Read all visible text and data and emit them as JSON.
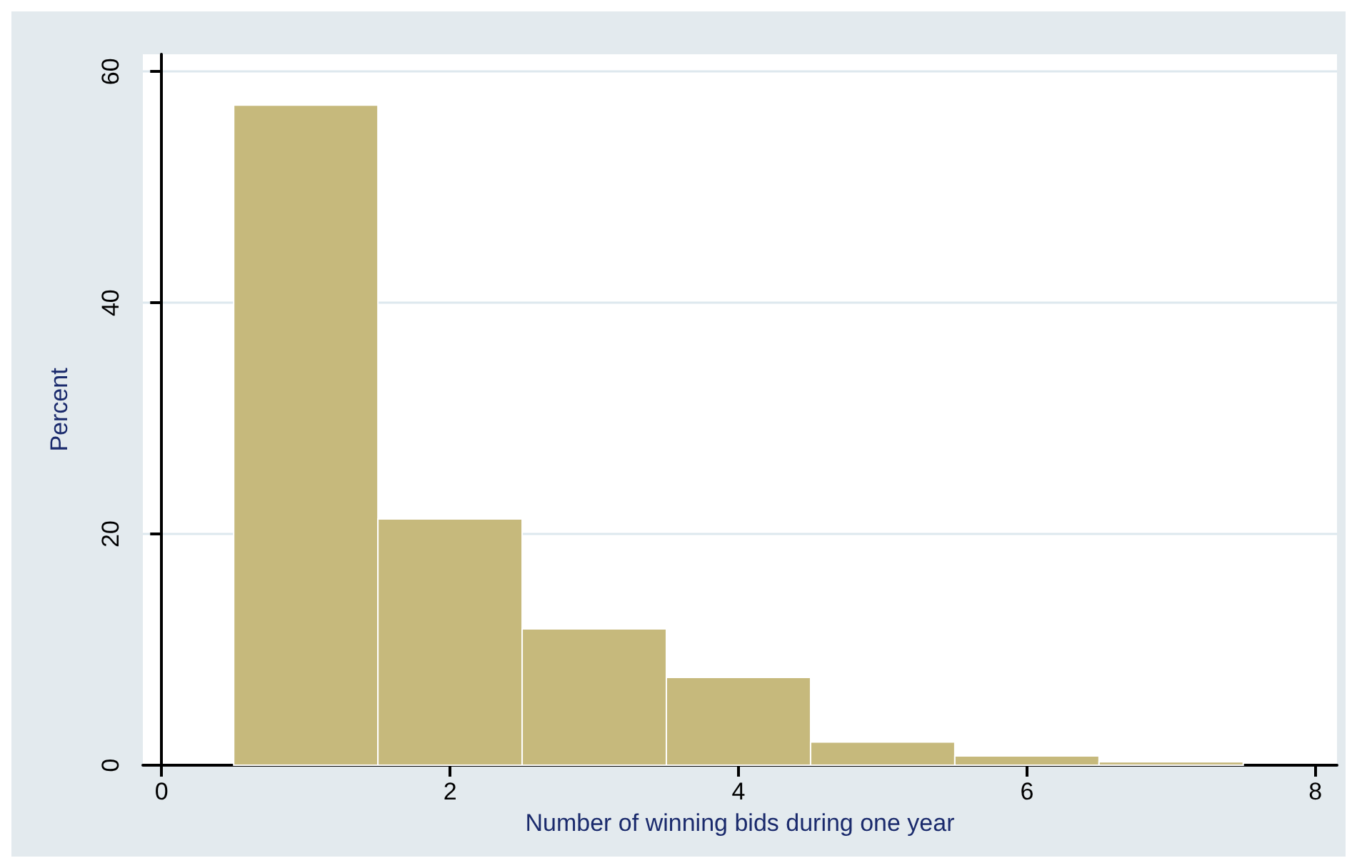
{
  "chart_data": {
    "type": "histogram",
    "xlabel": "Number of winning bids during one year",
    "ylabel": "Percent",
    "bins": [
      0.5,
      1.5,
      2.5,
      3.5,
      4.5,
      5.5,
      6.5,
      7.5
    ],
    "values": [
      57.1,
      21.3,
      11.8,
      7.6,
      2.0,
      0.8,
      0.3
    ],
    "color": "#c6b97c",
    "xlim": [
      -0.13,
      8.15
    ],
    "xticks": [
      0,
      2,
      4,
      6,
      8
    ],
    "ylim": [
      0,
      61.5
    ],
    "yticks": [
      0,
      20,
      40,
      60
    ],
    "grid": "y"
  }
}
